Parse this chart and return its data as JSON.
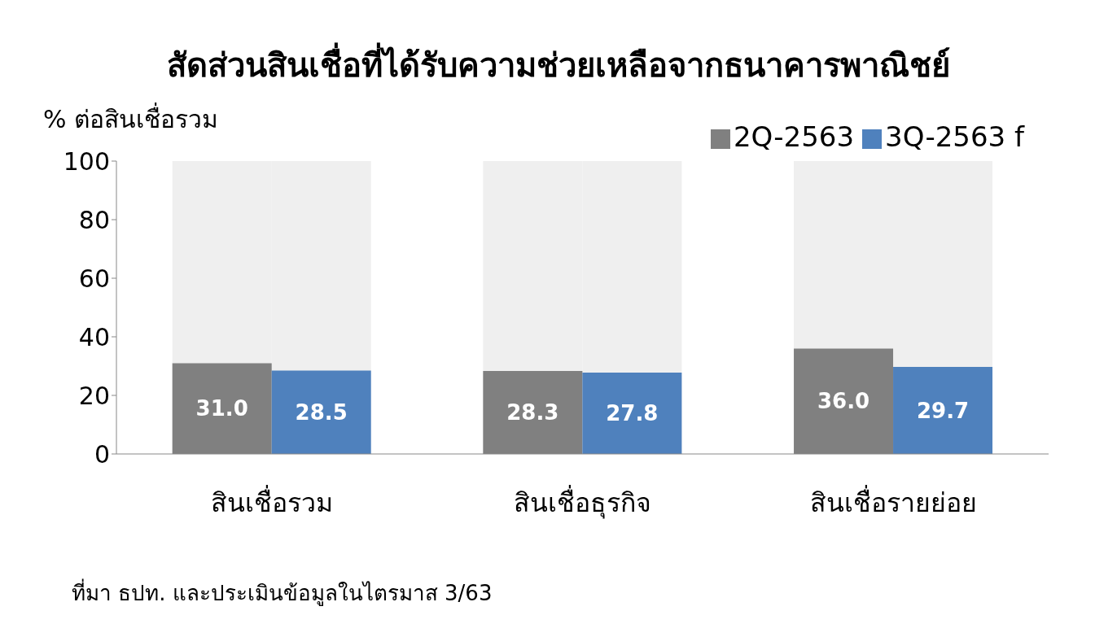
{
  "chart_data": {
    "type": "bar",
    "title": "สัดส่วนสินเชื่อที่ได้รับความช่วยเหลือจากธนาคารพาณิชย์",
    "ylabel": "% ต่อสินเชื่อรวม",
    "categories": [
      "สินเชื่อรวม",
      "สินเชื่อธุรกิจ",
      "สินเชื่อรายย่อย"
    ],
    "series": [
      {
        "name": "2Q-2563",
        "color": "#808080",
        "values": [
          31.0,
          28.3,
          36.0
        ],
        "value_labels": [
          "31.0",
          "28.3",
          "36.0"
        ]
      },
      {
        "name": "3Q-2563 f",
        "color": "#4f81bd",
        "values": [
          28.5,
          27.8,
          29.7
        ],
        "value_labels": [
          "28.5",
          "27.8",
          "29.7"
        ]
      }
    ],
    "ylim": [
      0,
      100
    ],
    "yticks": [
      0,
      20,
      40,
      60,
      80,
      100
    ],
    "grid": false,
    "legend": "top right",
    "annotations": [
      "ที่มา ธปท. และประเมินข้อมูลในไตรมาส 3/63"
    ]
  }
}
